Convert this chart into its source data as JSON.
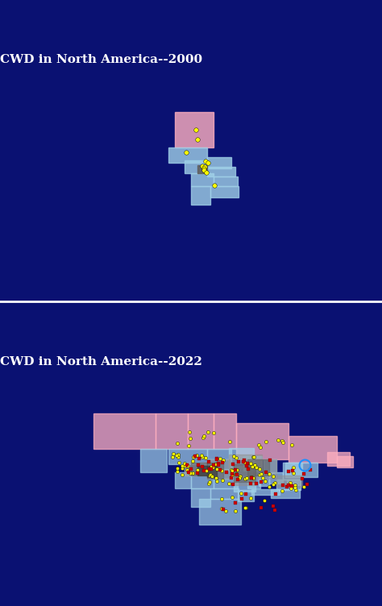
{
  "title_2000": "CWD in North America--2000",
  "title_2022": "CWD in North America--2022",
  "background_color": "#0a1172",
  "title_color": "white",
  "title_fontsize": 11,
  "land_color": "#d8d8d8",
  "ocean_color": "#0a1172",
  "pink_color": "#ffb0c0",
  "blue_color": "#a0d0e8",
  "gray_color": "#909090",
  "dark_gray_color": "#606060",
  "darker_gray_color": "#404040",
  "yellow_dot_color": "#ffff00",
  "red_dot_color": "#cc0000",
  "dark_red_color": "#800000",
  "blue_ring_color": "#1e90ff",
  "white_color": "#ffffff",
  "map_extent": [
    -168,
    -50,
    23,
    74
  ]
}
